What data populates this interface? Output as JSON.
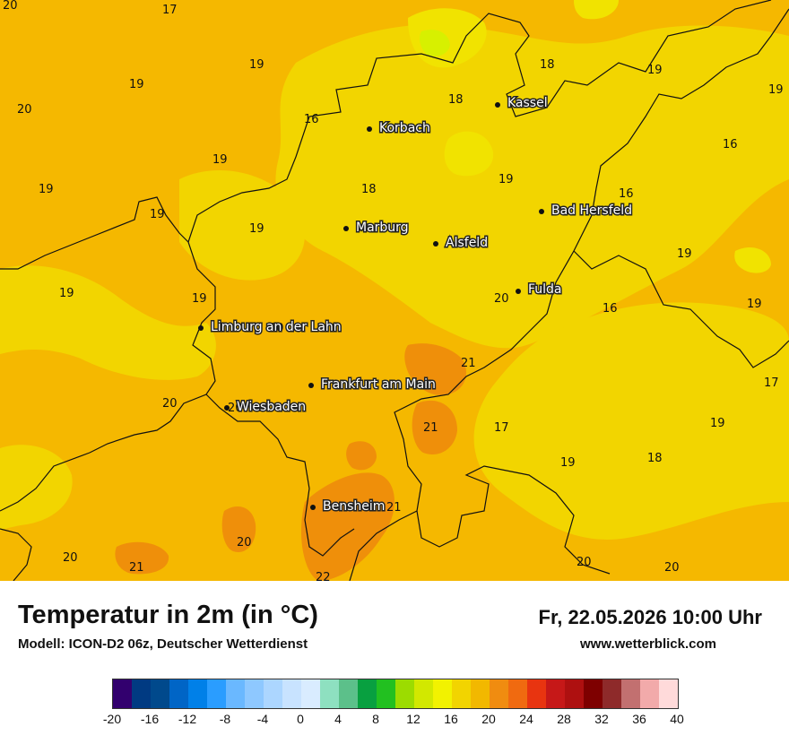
{
  "colors": {
    "base": "#f5b800",
    "light": "#f2d500",
    "pale": "#f1e300",
    "green": "#d7f000",
    "warm": "#ef8f0a",
    "border": "#111111"
  },
  "cities": [
    {
      "name": "Kassel"
    },
    {
      "name": "Korbach"
    },
    {
      "name": "Bad Hersfeld"
    },
    {
      "name": "Marburg"
    },
    {
      "name": "Alsfeld"
    },
    {
      "name": "Fulda"
    },
    {
      "name": "Limburg an der Lahn"
    },
    {
      "name": "Frankfurt am Main"
    },
    {
      "name": "Wiesbaden"
    },
    {
      "name": "Bensheim"
    }
  ],
  "values": [
    "20",
    "17",
    "19",
    "19",
    "20",
    "18",
    "18",
    "19",
    "19",
    "16",
    "16",
    "19",
    "19",
    "18",
    "19",
    "16",
    "19",
    "19",
    "19",
    "19",
    "19",
    "20",
    "19",
    "20",
    "21",
    "20",
    "20",
    "17",
    "21",
    "19",
    "18",
    "17",
    "19",
    "21",
    "20",
    "22",
    "20",
    "21",
    "20",
    "20",
    "16"
  ],
  "footer": {
    "title": "Temperatur in 2m (in °C)",
    "model": "Modell: ICON-D2 06z, Deutscher Wetterdienst",
    "date": "Fr, 22.05.2026 10:00 Uhr",
    "site": "www.wetterblick.com"
  },
  "legend": {
    "colors": [
      "#32006e",
      "#003a82",
      "#00498c",
      "#0065c6",
      "#0080e8",
      "#2a9dff",
      "#6ab8ff",
      "#8ec8ff",
      "#acd6ff",
      "#c8e3ff",
      "#d9ecff",
      "#8ee0c0",
      "#5cc08a",
      "#08a040",
      "#22c020",
      "#9cdc00",
      "#d2e800",
      "#f2f200",
      "#f2d400",
      "#f2b800",
      "#f08c10",
      "#f06a10",
      "#e83410",
      "#c61818",
      "#ae1010",
      "#7e0000",
      "#8e2a2a",
      "#c27070",
      "#f2aaaa",
      "#ffdada"
    ],
    "ticks": [
      "-20",
      "-16",
      "-12",
      "-8",
      "-4",
      "0",
      "4",
      "8",
      "12",
      "16",
      "20",
      "24",
      "28",
      "32",
      "36",
      "40"
    ]
  }
}
